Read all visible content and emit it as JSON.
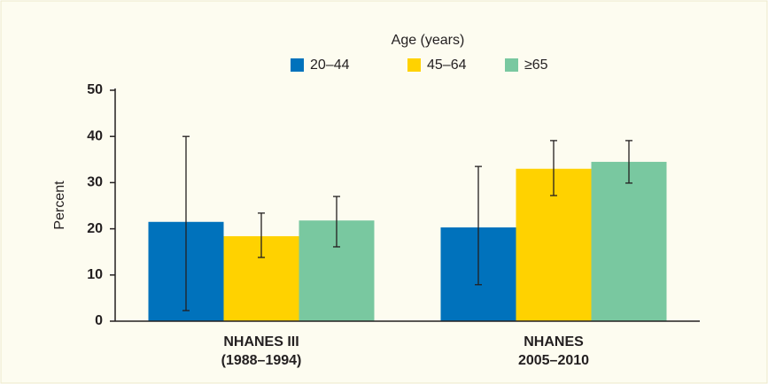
{
  "chart_data": {
    "type": "bar",
    "legend_title": "Age (years)",
    "y_label": "Percent",
    "categories": [
      [
        "NHANES III",
        "(1988–1994)"
      ],
      [
        "NHANES",
        "2005–2010"
      ]
    ],
    "series": [
      {
        "name": "20–44",
        "color": "#0072bc",
        "values": [
          21.5,
          20.3
        ],
        "lower": [
          2.3,
          7.9
        ],
        "upper": [
          40.0,
          33.5
        ]
      },
      {
        "name": "45–64",
        "color": "#ffd200",
        "values": [
          18.4,
          33.0
        ],
        "lower": [
          13.8,
          27.2
        ],
        "upper": [
          23.4,
          39.1
        ]
      },
      {
        "name": "≥65",
        "color": "#79c8a0",
        "values": [
          21.8,
          34.5
        ],
        "lower": [
          16.1,
          29.9
        ],
        "upper": [
          27.0,
          39.1
        ]
      }
    ],
    "ylim": [
      0,
      50
    ],
    "yticks": [
      0,
      10,
      20,
      30,
      40,
      50
    ],
    "grid": false
  }
}
